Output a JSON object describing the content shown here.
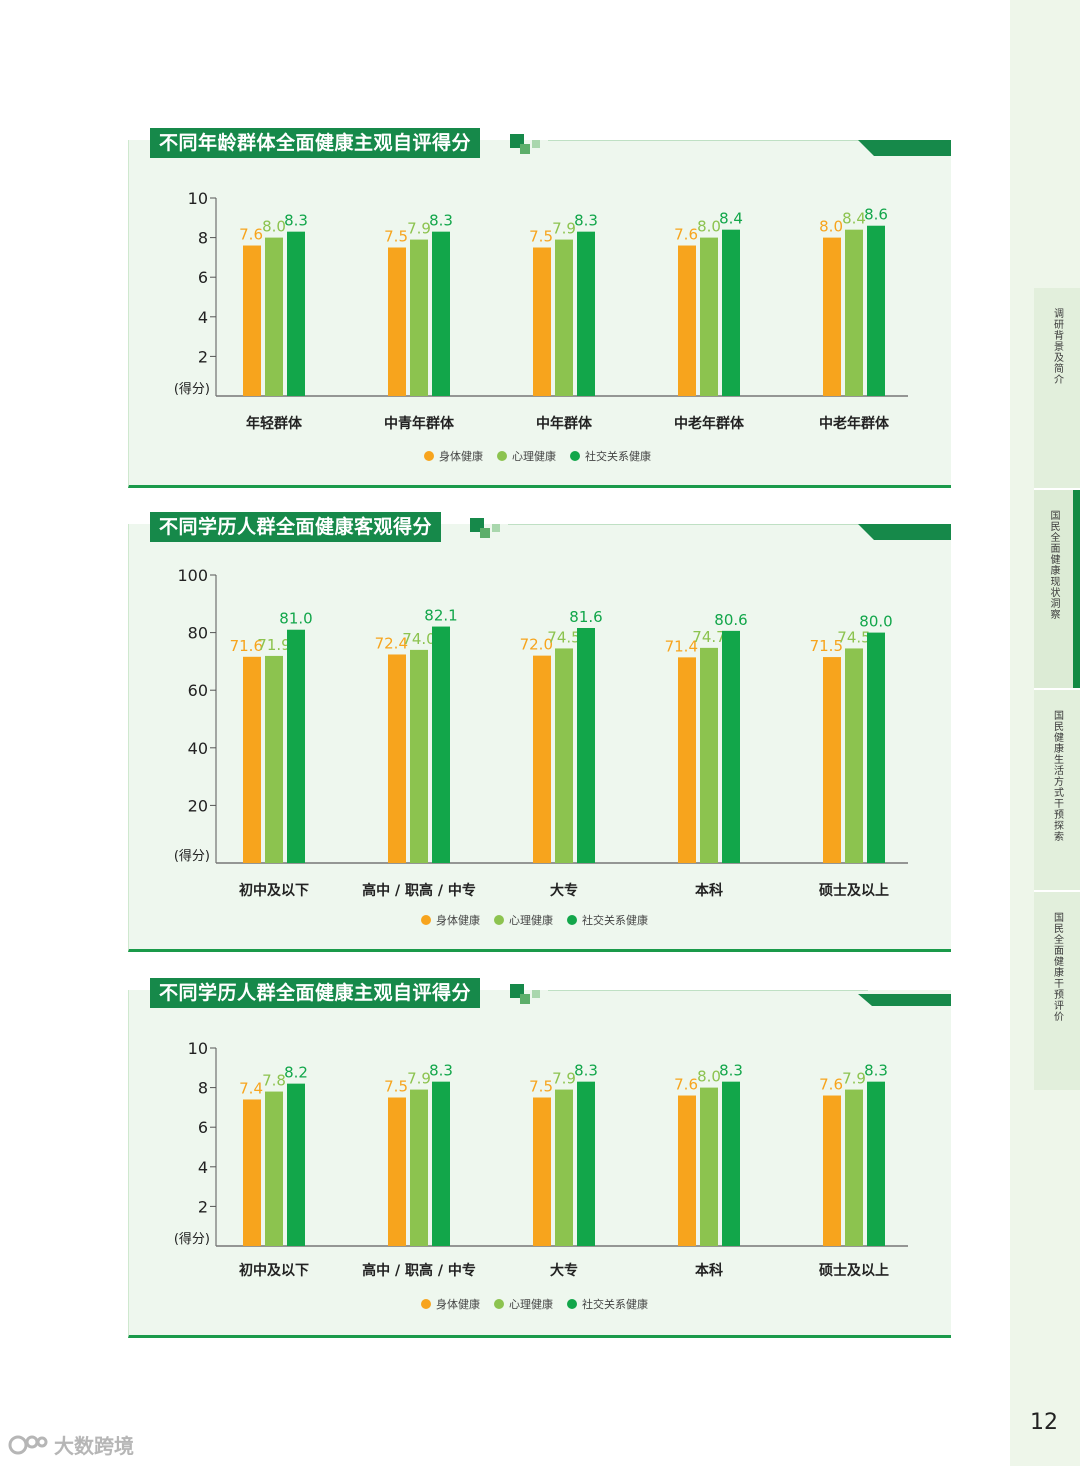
{
  "sidebar": {
    "tabs": [
      {
        "label": "调研背景及简介",
        "active": false
      },
      {
        "label": "国民全面健康现状洞察",
        "active": true
      },
      {
        "label": "国民健康生活方式干预探索",
        "active": false
      },
      {
        "label": "国民全面健康干预评价",
        "active": false
      }
    ]
  },
  "page_number": "12",
  "watermark": "大数跨境",
  "colors": {
    "physical": "#f7a41d",
    "mental": "#8cc34f",
    "social": "#12a64a",
    "brand_green": "#16894a"
  },
  "legend": [
    "身体健康",
    "心理健康",
    "社交关系健康"
  ],
  "chart_data": [
    {
      "type": "bar",
      "title": "不同年龄群体全面健康主观自评得分",
      "ylabel": "(得分)",
      "ylim": [
        0,
        10
      ],
      "yticks": [
        "2",
        "4",
        "6",
        "8",
        "10"
      ],
      "categories": [
        "年轻群体",
        "中青年群体",
        "中年群体",
        "中老年群体",
        "中老年群体"
      ],
      "series": [
        {
          "name": "身体健康",
          "values": [
            7.6,
            7.5,
            7.5,
            7.6,
            8.0
          ],
          "labels": [
            "7.6",
            "7.5",
            "7.5",
            "7.6",
            "8.0"
          ]
        },
        {
          "name": "心理健康",
          "values": [
            8.0,
            7.9,
            7.9,
            8.0,
            8.4
          ],
          "labels": [
            "8.0",
            "7.9",
            "7.9",
            "8.0",
            "8.4"
          ]
        },
        {
          "name": "社交关系健康",
          "values": [
            8.3,
            8.3,
            8.3,
            8.4,
            8.6
          ],
          "labels": [
            "8.3",
            "8.3",
            "8.3",
            "8.4",
            "8.6"
          ]
        }
      ]
    },
    {
      "type": "bar",
      "title": "不同学历人群全面健康客观得分",
      "ylabel": "(得分)",
      "ylim": [
        0,
        100
      ],
      "yticks": [
        "20",
        "40",
        "60",
        "80",
        "100"
      ],
      "categories": [
        "初中及以下",
        "高中 / 职高 / 中专",
        "大专",
        "本科",
        "硕士及以上"
      ],
      "series": [
        {
          "name": "身体健康",
          "values": [
            71.6,
            72.4,
            72.0,
            71.4,
            71.5
          ],
          "labels": [
            "71.6",
            "72.4",
            "72.0",
            "71.4",
            "71.5"
          ]
        },
        {
          "name": "心理健康",
          "values": [
            71.9,
            74.0,
            74.5,
            74.7,
            74.5
          ],
          "labels": [
            "71.9",
            "74.0",
            "74.5",
            "74.7",
            "74.5"
          ]
        },
        {
          "name": "社交关系健康",
          "values": [
            81.0,
            82.1,
            81.6,
            80.6,
            80.0
          ],
          "labels": [
            "81.0",
            "82.1",
            "81.6",
            "80.6",
            "80.0"
          ]
        }
      ]
    },
    {
      "type": "bar",
      "title": "不同学历人群全面健康主观自评得分",
      "ylabel": "(得分)",
      "ylim": [
        0,
        10
      ],
      "yticks": [
        "2",
        "4",
        "6",
        "8",
        "10"
      ],
      "categories": [
        "初中及以下",
        "高中 / 职高 / 中专",
        "大专",
        "本科",
        "硕士及以上"
      ],
      "series": [
        {
          "name": "身体健康",
          "values": [
            7.4,
            7.5,
            7.5,
            7.6,
            7.6
          ],
          "labels": [
            "7.4",
            "7.5",
            "7.5",
            "7.6",
            "7.6"
          ]
        },
        {
          "name": "心理健康",
          "values": [
            7.8,
            7.9,
            7.9,
            8.0,
            7.9
          ],
          "labels": [
            "7.8",
            "7.9",
            "7.9",
            "8.0",
            "7.9"
          ]
        },
        {
          "name": "社交关系健康",
          "values": [
            8.2,
            8.3,
            8.3,
            8.3,
            8.3
          ],
          "labels": [
            "8.2",
            "8.3",
            "8.3",
            "8.3",
            "8.3"
          ]
        }
      ]
    }
  ]
}
